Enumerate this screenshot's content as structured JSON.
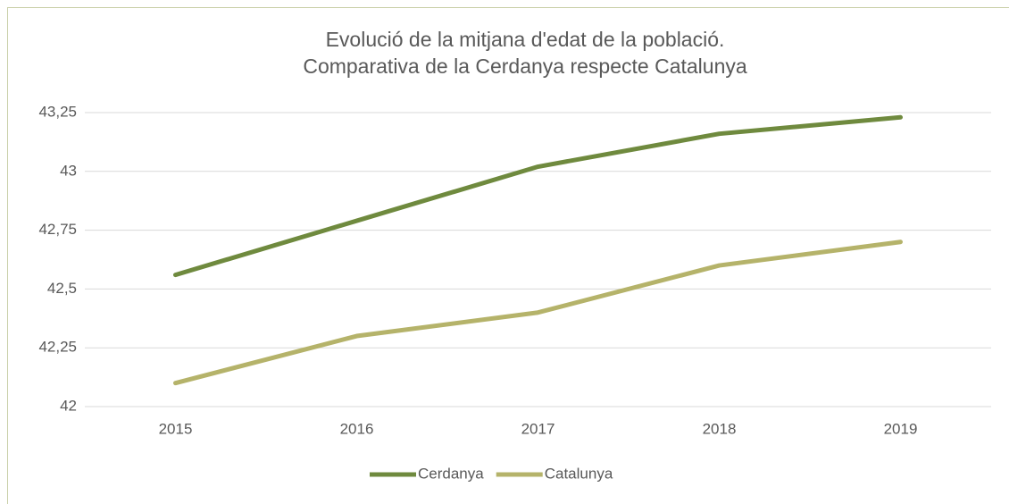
{
  "chart_data": {
    "type": "line",
    "title": [
      "Evolució de la mitjana d'edat de la població.",
      "Comparativa de la Cerdanya respecte Catalunya"
    ],
    "categories": [
      "2015",
      "2016",
      "2017",
      "2018",
      "2019"
    ],
    "series": [
      {
        "name": "Cerdanya",
        "color": "#6f8a3e",
        "values": [
          42.56,
          42.79,
          43.02,
          43.16,
          43.23
        ]
      },
      {
        "name": "Catalunya",
        "color": "#b5b36a",
        "values": [
          42.1,
          42.3,
          42.4,
          42.6,
          42.7
        ]
      }
    ],
    "ylim": [
      42,
      43.25
    ],
    "yticks": [
      42,
      {
        "value": 42.25,
        "label": "42,25"
      },
      {
        "value": 42.5,
        "label": "42,5"
      },
      {
        "value": 42.75,
        "label": "42,75"
      },
      43,
      {
        "value": 43.25,
        "label": "43,25"
      }
    ],
    "grid": true,
    "legend": "bottom"
  }
}
